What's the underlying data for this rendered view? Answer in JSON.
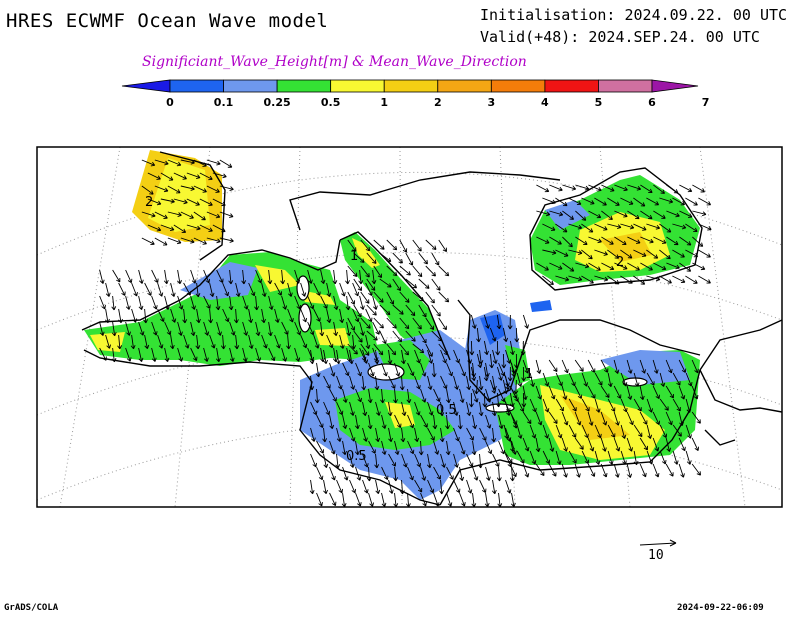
{
  "header": {
    "title": "HRES ECWMF Ocean Wave model",
    "initialisation": "Initialisation: 2024.09.22. 00 UTC",
    "valid": "Valid(+48): 2024.SEP.24. 00 UTC",
    "subtitle": "Significiant_Wave_Height[m] & Mean_Wave_Direction"
  },
  "colorbar": {
    "labels": [
      "0",
      "0.1",
      "0.25",
      "0.5",
      "1",
      "2",
      "3",
      "4",
      "5",
      "6",
      "7"
    ],
    "colors": [
      "#1a1ae6",
      "#1e64f0",
      "#6e98ee",
      "#34e234",
      "#f8f832",
      "#f4cf14",
      "#f4a614",
      "#f47d0a",
      "#f01414",
      "#d070a0",
      "#9c16a6"
    ]
  },
  "map": {
    "contour_labels": [
      "2",
      "1",
      "2",
      "1",
      "0.5",
      "0.5"
    ],
    "colors": {
      "land_outline": "#000000",
      "grid": "#9a9a9a"
    }
  },
  "footer": {
    "scale_label": "10",
    "credit": "GrADS/COLA",
    "timestamp": "2024-09-22-06:09"
  }
}
